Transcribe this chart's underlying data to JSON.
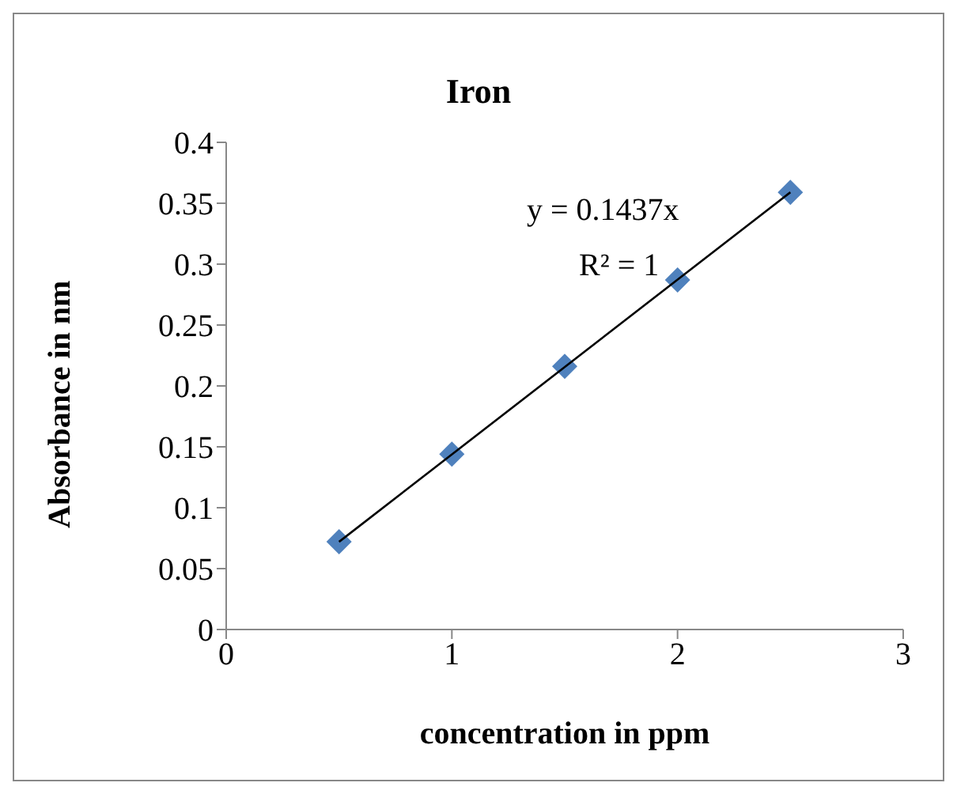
{
  "chart_data": {
    "type": "scatter",
    "title": "Iron",
    "xlabel": "concentration in ppm",
    "ylabel": "Absorbance in nm",
    "x": [
      0.5,
      1,
      1.5,
      2,
      2.5
    ],
    "series": [
      {
        "color": "#4f81bd",
        "marker": "diamond",
        "values": [
          0.072,
          0.144,
          0.216,
          0.287,
          0.359
        ]
      },
      {
        "type": "line",
        "color": "#000000",
        "marker": "none",
        "x": [
          0.5,
          2.5
        ],
        "values": [
          0.072,
          0.359
        ]
      }
    ],
    "annotations": [
      "y = 0.1437x",
      "R² = 1"
    ],
    "xlim": [
      0,
      3
    ],
    "xticks": [
      0,
      1,
      2,
      3
    ],
    "ylim": [
      0,
      0.4
    ],
    "yticks": [
      0,
      0.05,
      0.1,
      0.15,
      0.2,
      0.25,
      0.3,
      0.35,
      0.4
    ],
    "grid": false,
    "legend": false
  }
}
